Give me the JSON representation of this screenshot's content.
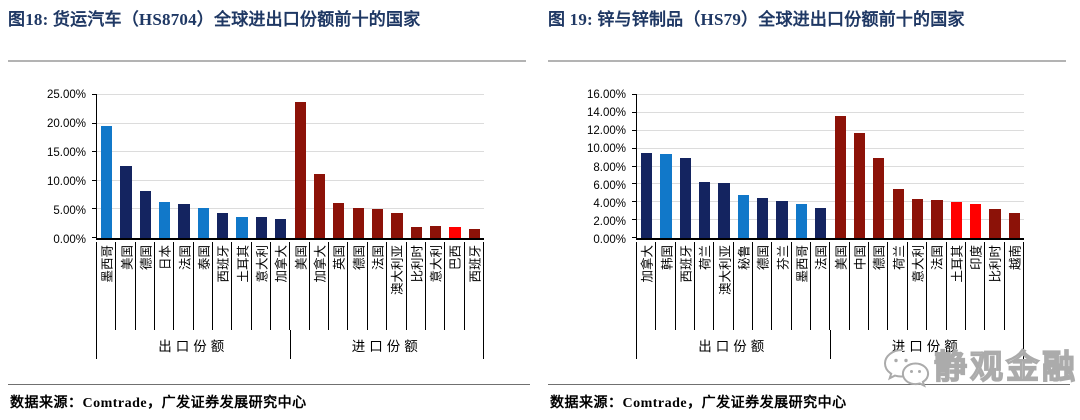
{
  "page": {
    "source": "数据来源：Comtrade，广发证券发展研究中心",
    "watermark_text": "静观金融",
    "colors": {
      "title_navy": "#1F3864",
      "export_light_blue": "#1178C9",
      "export_dark_navy": "#142460",
      "import_dark_red": "#8C1208",
      "import_bright_red": "#FF0000",
      "gridline_gray": "#DCDCDC",
      "watermark_gray": "#ABABAB"
    }
  },
  "chart_data": [
    {
      "type": "bar",
      "title": "图18:  货运汽车（HS8704）全球进出口份额前十的国家",
      "xlabel": "",
      "ylabel": "",
      "ylim": [
        0,
        25
      ],
      "grid": true,
      "yticks": [
        [
          0,
          "0.00%"
        ],
        [
          5,
          "5.00%"
        ],
        [
          10,
          "10.00%"
        ],
        [
          15,
          "15.00%"
        ],
        [
          20,
          "20.00%"
        ],
        [
          25,
          "25.00%"
        ]
      ],
      "groups": [
        {
          "label": "出口份额",
          "categories": [
            "墨西哥",
            "美国",
            "德国",
            "日本",
            "法国",
            "泰国",
            "西班牙",
            "土耳其",
            "意大利",
            "加拿大"
          ],
          "values": [
            19.6,
            12.6,
            8.2,
            6.3,
            6.0,
            5.2,
            4.3,
            3.7,
            3.6,
            3.3
          ],
          "colors": [
            "#1178C9",
            "#142460",
            "#142460",
            "#1178C9",
            "#142460",
            "#1178C9",
            "#142460",
            "#1178C9",
            "#142460",
            "#142460"
          ]
        },
        {
          "label": "进口份额",
          "categories": [
            "美国",
            "加拿大",
            "英国",
            "德国",
            "法国",
            "澳大利亚",
            "比利时",
            "意大利",
            "巴西",
            "西班牙"
          ],
          "values": [
            23.7,
            11.2,
            6.1,
            5.2,
            5.0,
            4.4,
            2.0,
            2.1,
            1.9,
            1.5
          ],
          "colors": [
            "#8C1208",
            "#8C1208",
            "#8C1208",
            "#8C1208",
            "#8C1208",
            "#8C1208",
            "#8C1208",
            "#8C1208",
            "#FF0000",
            "#8C1208"
          ]
        }
      ]
    },
    {
      "type": "bar",
      "title": "图 19:  锌与锌制品（HS79）全球进出口份额前十的国家",
      "xlabel": "",
      "ylabel": "",
      "ylim": [
        0,
        16
      ],
      "grid": true,
      "yticks": [
        [
          0,
          "0.00%"
        ],
        [
          2,
          "2.00%"
        ],
        [
          4,
          "4.00%"
        ],
        [
          6,
          "6.00%"
        ],
        [
          8,
          "8.00%"
        ],
        [
          10,
          "10.00%"
        ],
        [
          12,
          "12.00%"
        ],
        [
          14,
          "14.00%"
        ],
        [
          16,
          "16.00%"
        ]
      ],
      "groups": [
        {
          "label": "出口份额",
          "categories": [
            "加拿大",
            "韩国",
            "西班牙",
            "荷兰",
            "澳大利亚",
            "秘鲁",
            "德国",
            "芬兰",
            "墨西哥",
            "法国"
          ],
          "values": [
            9.5,
            9.4,
            9.0,
            6.3,
            6.1,
            4.8,
            4.5,
            4.1,
            3.8,
            3.4
          ],
          "colors": [
            "#142460",
            "#1178C9",
            "#142460",
            "#142460",
            "#142460",
            "#1178C9",
            "#142460",
            "#142460",
            "#1178C9",
            "#142460"
          ]
        },
        {
          "label": "进口份额",
          "categories": [
            "美国",
            "中国",
            "德国",
            "荷兰",
            "意大利",
            "法国",
            "土耳其",
            "印度",
            "比利时",
            "越南"
          ],
          "values": [
            13.6,
            11.8,
            8.9,
            5.5,
            4.4,
            4.2,
            4.0,
            3.8,
            3.3,
            2.8
          ],
          "colors": [
            "#8C1208",
            "#8C1208",
            "#8C1208",
            "#8C1208",
            "#8C1208",
            "#8C1208",
            "#FF0000",
            "#FF0000",
            "#8C1208",
            "#8C1208"
          ]
        }
      ]
    }
  ]
}
